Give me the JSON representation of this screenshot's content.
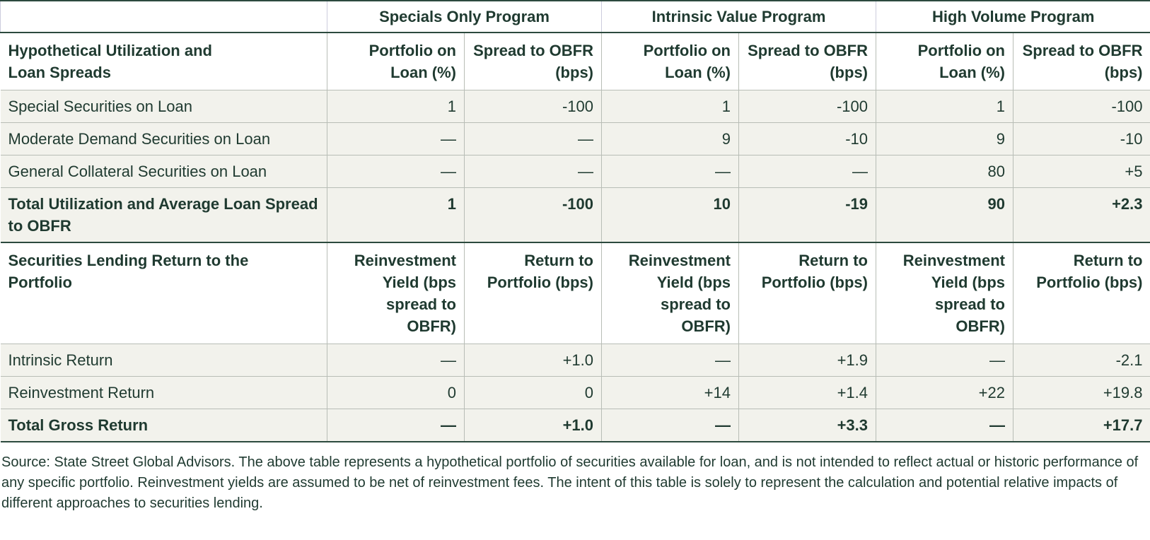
{
  "table": {
    "column_groups": [
      "Specials Only Program",
      "Intrinsic Value Program",
      "High Volume Program"
    ],
    "sections": [
      {
        "header": [
          "Hypothetical Utilization and Loan Spreads",
          "Portfolio on Loan (%)",
          "Spread to OBFR (bps)",
          "Portfolio on Loan (%)",
          "Spread to OBFR (bps)",
          "Portfolio on Loan (%)",
          "Spread to OBFR (bps)"
        ],
        "rows": [
          [
            "Special Securities on Loan",
            "1",
            "-100",
            "1",
            "-100",
            "1",
            "-100"
          ],
          [
            "Moderate Demand Securities on Loan",
            "—",
            "—",
            "9",
            "-10",
            "9",
            "-10"
          ],
          [
            "General Collateral Securities on Loan",
            "—",
            "—",
            "—",
            "—",
            "80",
            "+5"
          ]
        ],
        "total": [
          "Total Utilization and Average Loan Spread to OBFR",
          "1",
          "-100",
          "10",
          "-19",
          "90",
          "+2.3"
        ]
      },
      {
        "header": [
          "Securities Lending Return to the Portfolio",
          "Reinvestment Yield (bps spread to OBFR)",
          "Return to Portfolio (bps)",
          "Reinvestment Yield (bps spread to OBFR)",
          "Return to Portfolio (bps)",
          "Reinvestment Yield (bps spread to OBFR)",
          "Return to Portfolio (bps)"
        ],
        "rows": [
          [
            "Intrinsic Return",
            "—",
            "+1.0",
            "—",
            "+1.9",
            "—",
            "-2.1"
          ],
          [
            "Reinvestment Return",
            "0",
            "0",
            "+14",
            "+1.4",
            "+22",
            "+19.8"
          ]
        ],
        "total": [
          "Total Gross Return",
          "—",
          "+1.0",
          "—",
          "+3.3",
          "—",
          "+17.7"
        ]
      }
    ]
  },
  "footnote": "Source: State Street Global Advisors. The above table represents a hypothetical portfolio of securities available for loan, and is not intended to reflect actual or historic performance of any specific portfolio. Reinvestment yields are assumed to be net of reinvestment fees. The intent of this table is solely to represent the calculation and potential relative impacts of different approaches to securities lending."
}
